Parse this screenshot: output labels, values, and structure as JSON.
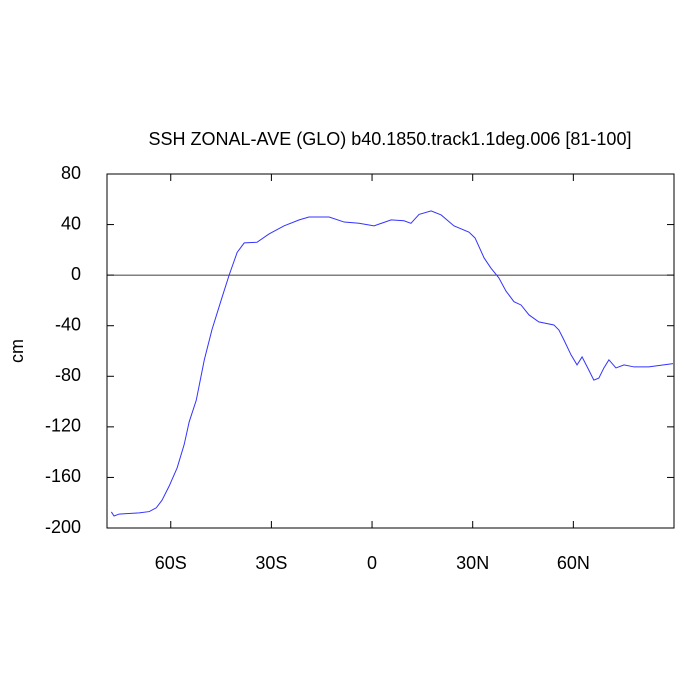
{
  "chart_data": {
    "type": "line",
    "title": "SSH ZONAL-AVE (GLO) b40.1850.track1.1deg.006 [81-100]",
    "y_label": "cm",
    "x": [
      -77.7,
      -76.9,
      -75.4,
      -69.4,
      -66.4,
      -64.3,
      -62.6,
      -60.5,
      -58.1,
      -56,
      -54.5,
      -52.4,
      -50,
      -47.7,
      -45,
      -42.6,
      -40.2,
      -38.1,
      -34.3,
      -30.7,
      -26.2,
      -21.7,
      -18.8,
      -12.8,
      -8.3,
      -3.9,
      0.6,
      5.7,
      9.5,
      11.6,
      14,
      17.6,
      20.6,
      24.4,
      28.9,
      30.7,
      33.4,
      35.4,
      37.8,
      39.9,
      42.3,
      44.4,
      46.8,
      49.7,
      54.2,
      55.7,
      57.2,
      59.3,
      61.1,
      62.6,
      64.6,
      66.1,
      67.6,
      69.1,
      70.6,
      72.7,
      75.1,
      78.1,
      82.5,
      89.7
    ],
    "series": [
      {
        "name": "SSH",
        "color": "#3333ff",
        "values": [
          -187.3,
          -190.5,
          -189,
          -188,
          -187,
          -184,
          -178,
          -167,
          -152.5,
          -134,
          -116,
          -99,
          -67,
          -43,
          -20,
          0,
          18,
          25.5,
          26,
          32.6,
          39,
          43.7,
          46,
          46,
          42,
          41,
          39,
          43.7,
          43,
          41,
          48,
          50.8,
          47.6,
          39,
          34,
          29.4,
          13.6,
          5.7,
          -2.2,
          -12.5,
          -21,
          -23.6,
          -31.5,
          -37,
          -39.4,
          -43.4,
          -51.3,
          -63,
          -71,
          -64.7,
          -75,
          -83,
          -81.4,
          -73.4,
          -67,
          -73.4,
          -71,
          -72.6,
          -72.6,
          -70
        ]
      }
    ],
    "xlim": [
      -79,
      90
    ],
    "xticks": [
      {
        "value": -60,
        "label": "60S"
      },
      {
        "value": -30,
        "label": "30S"
      },
      0,
      {
        "value": 30,
        "label": "30N"
      },
      {
        "value": 60,
        "label": "60N"
      }
    ],
    "ylim": [
      -200,
      80
    ],
    "yticks": [
      80,
      40,
      0,
      -40,
      -80,
      -120,
      -160,
      -200
    ],
    "hline": 0
  }
}
